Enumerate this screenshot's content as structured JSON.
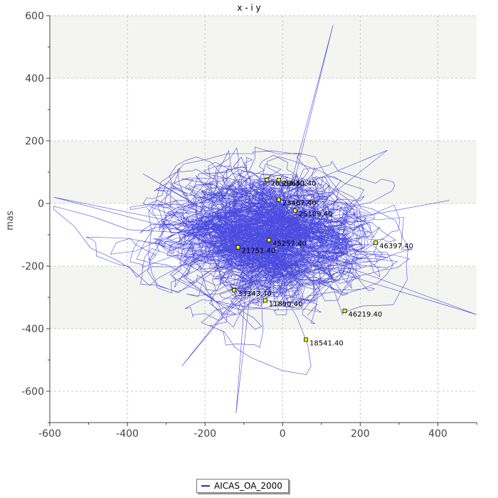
{
  "chart_data": {
    "type": "line",
    "title": "x - i y",
    "xlabel": "",
    "ylabel": "mas",
    "xlim": [
      -600,
      500
    ],
    "ylim": [
      -700,
      600
    ],
    "xticks": [
      -600,
      -400,
      -200,
      0,
      200,
      400
    ],
    "yticks": [
      600,
      400,
      200,
      0,
      -200,
      -400,
      -600
    ],
    "grid": true,
    "legend_position": "bottom-center",
    "colors": {
      "series": "#2b2bd9",
      "marker": "#ffff00",
      "band": "#f4f4f0",
      "grid": "#c8c8c8"
    },
    "series": [
      {
        "name": "AICAS_OA_2000",
        "description": "dense random-walk trajectory centered near (-20, -90) with spread about 250 mas in x and 200 mas in y; extremes near x from -590 to 500 and y from -670 to 575"
      }
    ],
    "annotations": [
      {
        "x": -40,
        "y": 75,
        "label": "26353.40"
      },
      {
        "x": -10,
        "y": 75,
        "label": "18653.40"
      },
      {
        "x": -10,
        "y": 12,
        "label": "23467.40"
      },
      {
        "x": 32,
        "y": -23,
        "label": "25109.40"
      },
      {
        "x": -35,
        "y": -117,
        "label": "45257.40"
      },
      {
        "x": -115,
        "y": -140,
        "label": "21751.40"
      },
      {
        "x": 240,
        "y": -125,
        "label": "46397.40"
      },
      {
        "x": -125,
        "y": -277,
        "label": "33343.40"
      },
      {
        "x": -45,
        "y": -310,
        "label": "11890.40"
      },
      {
        "x": 160,
        "y": -343,
        "label": "46219.40"
      },
      {
        "x": 60,
        "y": -435,
        "label": "18541.40"
      }
    ]
  }
}
